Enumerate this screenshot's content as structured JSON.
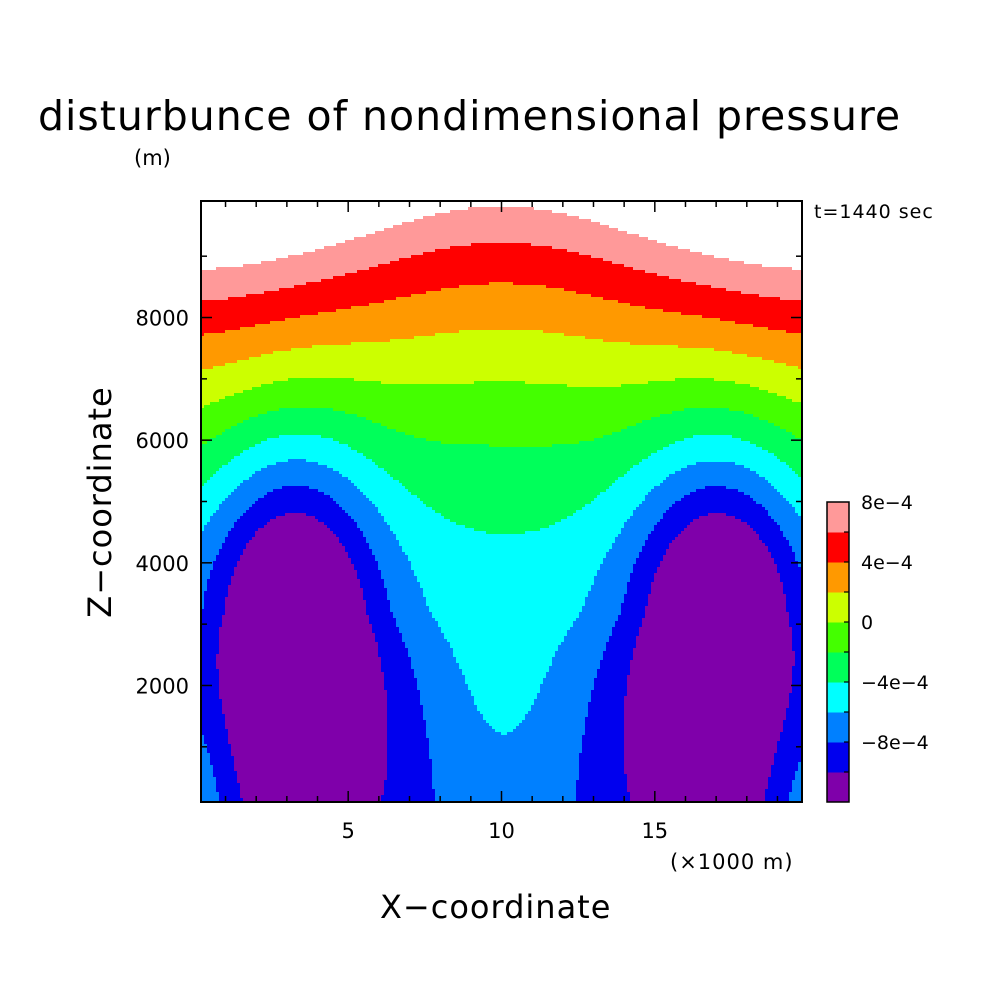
{
  "chart_data": {
    "type": "heatmap",
    "subtype": "filled-contour",
    "title": "disturbunce of nondimensional pressure",
    "time_label": "t=1440 sec",
    "xlabel": "X−coordinate",
    "ylabel": "Z−coordinate",
    "x_unit_label": "(×1000 m)",
    "z_unit_label": "(m)",
    "xlim": [
      0.2,
      19.8
    ],
    "ylim": [
      100,
      9900
    ],
    "x_ticks": [
      5,
      10,
      15
    ],
    "x_tick_labels": [
      "5",
      "10",
      "15"
    ],
    "y_ticks": [
      2000,
      4000,
      6000,
      8000
    ],
    "y_tick_labels": [
      "2000",
      "4000",
      "6000",
      "8000"
    ],
    "colorbar": {
      "levels": [
        -0.001,
        -0.0008,
        -0.0006,
        -0.0004,
        -0.0002,
        0,
        0.0002,
        0.0004,
        0.0006,
        0.0008,
        0.001
      ],
      "colors": [
        "#7f00aa",
        "#0000ee",
        "#0080ff",
        "#00ffff",
        "#00ff5a",
        "#44ff00",
        "#ccff00",
        "#ff9900",
        "#ff0000",
        "#ff9999"
      ],
      "tick_labels": [
        "−8e−4",
        "−4e−4",
        "0",
        "4e−4",
        "8e−4"
      ]
    },
    "above_max_color": "#ffffff",
    "features": [
      {
        "kind": "minimum",
        "x": 3.2,
        "z": 3200,
        "value": -0.0009
      },
      {
        "kind": "minimum",
        "x": 17.1,
        "z": 3200,
        "value": -0.0009
      },
      {
        "kind": "maximum",
        "x": 0.6,
        "z": 9800,
        "value": 0.0011
      },
      {
        "kind": "maximum",
        "x": 19.6,
        "z": 9800,
        "value": 0.0011
      }
    ]
  }
}
